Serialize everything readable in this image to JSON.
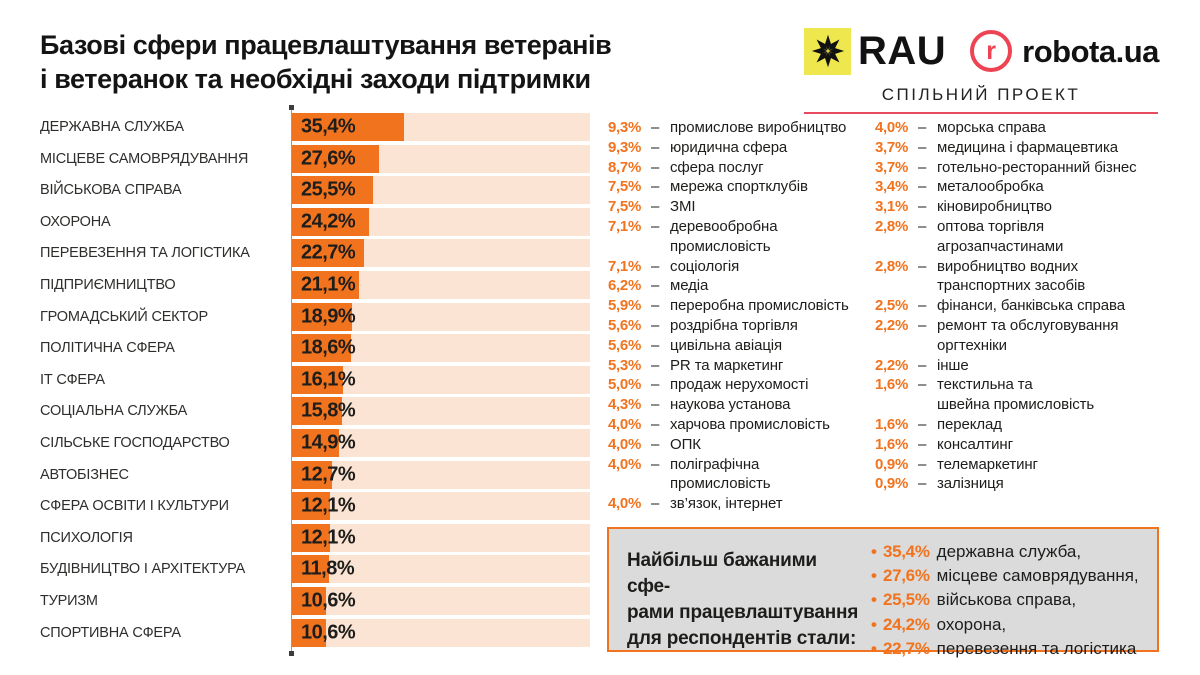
{
  "header": {
    "title_lines": [
      "Базові сфери працевлаштування ветеранів",
      "і ветеранок та необхідні заходи підтримки"
    ],
    "partners": {
      "rau_label": "RAU",
      "robota_icon_letter": "r",
      "robota_label": "robota.ua",
      "subtitle": "СПІЛЬНИЙ ПРОЕКТ"
    }
  },
  "colors": {
    "accent_orange": "#F2731E",
    "bar_track": "#FBE4D3",
    "brand_red": "#EE4352",
    "underline_red": "#E84A5F",
    "rau_yellow": "#EFE74E",
    "summary_bg": "#DBDBDB",
    "text_dark": "#1D1D1B"
  },
  "lists": {
    "separator": "–"
  },
  "chart_data": {
    "type": "bar",
    "orientation": "horizontal",
    "unit": "%",
    "xlim": [
      0,
      94
    ],
    "grid": false,
    "title": "Базові сфери працевлаштування ветеранів і ветеранок та необхідні заходи підтримки",
    "bars": [
      {
        "label": "ДЕРЖАВНА СЛУЖБА",
        "value": 35.4,
        "value_label": "35,4%"
      },
      {
        "label": "МІСЦЕВЕ САМОВРЯДУВАННЯ",
        "value": 27.6,
        "value_label": "27,6%"
      },
      {
        "label": "ВІЙСЬКОВА СПРАВА",
        "value": 25.5,
        "value_label": "25,5%"
      },
      {
        "label": "ОХОРОНА",
        "value": 24.2,
        "value_label": "24,2%"
      },
      {
        "label": "ПЕРЕВЕЗЕННЯ ТА ЛОГІСТИКА",
        "value": 22.7,
        "value_label": "22,7%"
      },
      {
        "label": "ПІДПРИЄМНИЦТВО",
        "value": 21.1,
        "value_label": "21,1%"
      },
      {
        "label": "ГРОМАДСЬКИЙ СЕКТОР",
        "value": 18.9,
        "value_label": "18,9%"
      },
      {
        "label": "ПОЛІТИЧНА СФЕРА",
        "value": 18.6,
        "value_label": "18,6%"
      },
      {
        "label": "ІТ СФЕРА",
        "value": 16.1,
        "value_label": "16,1%"
      },
      {
        "label": "СОЦІАЛЬНА СЛУЖБА",
        "value": 15.8,
        "value_label": "15,8%"
      },
      {
        "label": "СІЛЬСЬКЕ ГОСПОДАРСТВО",
        "value": 14.9,
        "value_label": "14,9%"
      },
      {
        "label": "АВТОБІЗНЕС",
        "value": 12.7,
        "value_label": "12,7%"
      },
      {
        "label": "СФЕРА ОСВІТИ І КУЛЬТУРИ",
        "value": 12.1,
        "value_label": "12,1%"
      },
      {
        "label": "ПСИХОЛОГІЯ",
        "value": 12.1,
        "value_label": "12,1%"
      },
      {
        "label": "БУДІВНИЦТВО І АРХІТЕКТУРА",
        "value": 11.8,
        "value_label": "11,8%"
      },
      {
        "label": "ТУРИЗМ",
        "value": 10.6,
        "value_label": "10,6%"
      },
      {
        "label": "СПОРТИВНА СФЕРА",
        "value": 10.6,
        "value_label": "10,6%"
      }
    ],
    "secondary_lists": {
      "col1": [
        {
          "pct": "9,3%",
          "label": "промислове виробництво"
        },
        {
          "pct": "9,3%",
          "label": "юридична сфера"
        },
        {
          "pct": "8,7%",
          "label": "сфера послуг"
        },
        {
          "pct": "7,5%",
          "label": "мережа спортклубів"
        },
        {
          "pct": "7,5%",
          "label": "ЗМІ"
        },
        {
          "pct": "7,1%",
          "label": [
            "деревообробна",
            "промисловість"
          ]
        },
        {
          "pct": "7,1%",
          "label": "соціологія"
        },
        {
          "pct": "6,2%",
          "label": "медіа"
        },
        {
          "pct": "5,9%",
          "label": "переробна промисловість"
        },
        {
          "pct": "5,6%",
          "label": "роздрібна торгівля"
        },
        {
          "pct": "5,6%",
          "label": "цивільна авіація"
        },
        {
          "pct": "5,3%",
          "label": "PR та маркетинг"
        },
        {
          "pct": "5,0%",
          "label": "продаж нерухомості"
        },
        {
          "pct": "4,3%",
          "label": "наукова установа"
        },
        {
          "pct": "4,0%",
          "label": "харчова промисловість"
        },
        {
          "pct": "4,0%",
          "label": "ОПК"
        },
        {
          "pct": "4,0%",
          "label": [
            "поліграфічна",
            "промисловість"
          ]
        },
        {
          "pct": "4,0%",
          "label": "зв’язок, інтернет"
        }
      ],
      "col2": [
        {
          "pct": "4,0%",
          "label": "морська справа"
        },
        {
          "pct": "3,7%",
          "label": "медицина і фармацевтика"
        },
        {
          "pct": "3,7%",
          "label": "готельно-ресторанний бізнес"
        },
        {
          "pct": "3,4%",
          "label": "металообробка"
        },
        {
          "pct": "3,1%",
          "label": "кіновиробництво"
        },
        {
          "pct": "2,8%",
          "label": [
            "оптова торгівля",
            "агрозапчастинами"
          ]
        },
        {
          "pct": "2,8%",
          "label": [
            "виробництво водних",
            "транспортних засобів"
          ]
        },
        {
          "pct": "2,5%",
          "label": "фінанси, банківська справа"
        },
        {
          "pct": "2,2%",
          "label": [
            "ремонт та обслуговування",
            "оргтехніки"
          ]
        },
        {
          "pct": "2,2%",
          "label": "інше"
        },
        {
          "pct": "1,6%",
          "label": [
            "текстильна та",
            "швейна промисловість"
          ]
        },
        {
          "pct": "1,6%",
          "label": "переклад"
        },
        {
          "pct": "1,6%",
          "label": "консалтинг"
        },
        {
          "pct": "0,9%",
          "label": "телемаркетинг"
        },
        {
          "pct": "0,9%",
          "label": "залізниця"
        }
      ]
    }
  },
  "summary": {
    "intro_lines": [
      "Найбільш бажаними сфе-",
      "рами працевлаштування",
      "для респондентів стали:"
    ],
    "bullet": "•",
    "items": [
      {
        "pct": "35,4%",
        "label": "державна служба,"
      },
      {
        "pct": "27,6%",
        "label": "місцеве самоврядування,"
      },
      {
        "pct": "25,5%",
        "label": "військова справа,"
      },
      {
        "pct": "24,2%",
        "label": "охорона,"
      },
      {
        "pct": "22,7%",
        "label": "перевезення та логістика"
      }
    ]
  }
}
